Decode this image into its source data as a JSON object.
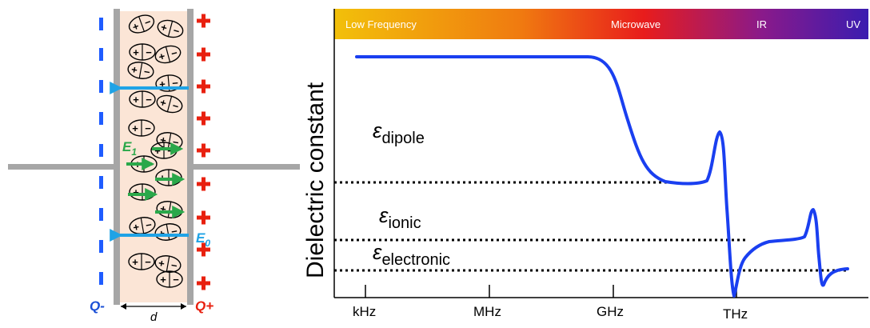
{
  "capacitor": {
    "charge_negative_label": "Q-",
    "charge_positive_label": "Q+",
    "gap_label": "d",
    "field_dipole_label": "E",
    "field_dipole_sub": "1",
    "field_applied_label": "E",
    "field_applied_sub": "0",
    "plus_sign": "+",
    "minus_sign": "−",
    "colors": {
      "plate": "#a6a6a6",
      "dielectric": "#fbe5d6",
      "negative_charge": "#1f5cff",
      "positive_charge": "#e8200f",
      "applied_field": "#1fa3e6",
      "dipole_field": "#2aa84a",
      "label_blue": "#1a4fd6",
      "label_red": "#e8200f"
    }
  },
  "spectrum_bar": {
    "labels": [
      "Low Frequency",
      "Microwave",
      "IR",
      "UV"
    ],
    "colors": [
      "#f2c00a",
      "#f07a10",
      "#e81c1c",
      "#8a1a8a",
      "#3a1cb0"
    ]
  },
  "plot": {
    "ylabel": "Dielectric constant",
    "x_ticks": [
      "kHz",
      "MHz",
      "GHz",
      "THz"
    ],
    "level_symbol": "ε",
    "levels": [
      {
        "name": "dipole"
      },
      {
        "name": "ionic"
      },
      {
        "name": "electronic"
      }
    ],
    "curve_color": "#1a3ff0"
  }
}
